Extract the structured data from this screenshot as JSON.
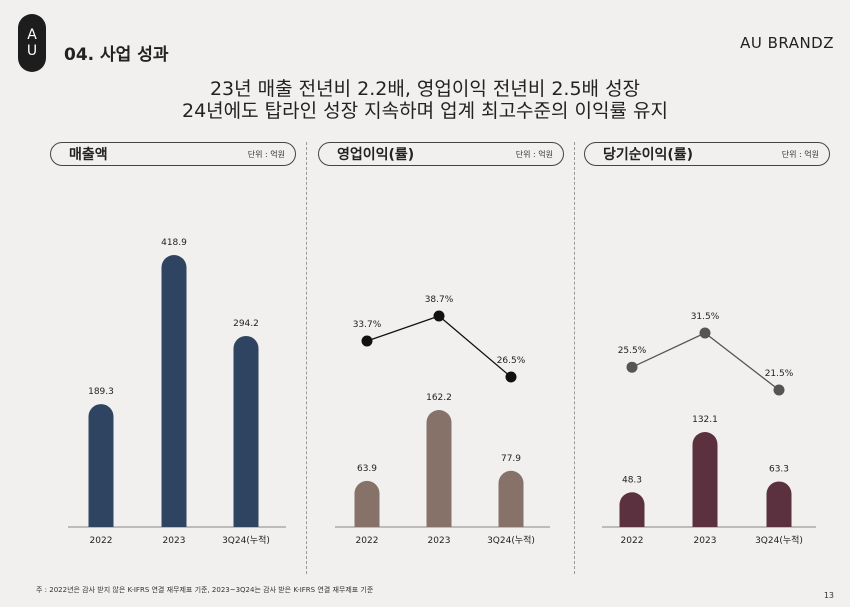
{
  "logo": {
    "top": "A",
    "bottom": "U"
  },
  "section_title": "04. 사업 성과",
  "brand": "AU BRANDZ",
  "headline": {
    "line1": "23년 매출 전년비 2.2배, 영업이익 전년비 2.5배 성장",
    "line2": "24년에도 탑라인 성장 지속하며 업계 최고수준의 이익률 유지"
  },
  "footnote": "주 : 2022년은 감사 받지 않은 K-IFRS 연결 재무제표 기준, 2023~3Q24는 감사 받은 K-IFRS 연결 재무제표 기준",
  "page_number": "13",
  "colors": {
    "revenue": "#2f4461",
    "op_income": "#867269",
    "net_income": "#5b3140",
    "line_op": "#111111",
    "line_net": "#555555"
  },
  "chart_data": [
    {
      "type": "bar",
      "title": "매출액",
      "unit": "단위 : 억원",
      "categories": [
        "2022",
        "2023",
        "3Q24(누적)"
      ],
      "values": [
        189.3,
        418.9,
        294.2
      ],
      "value_labels": [
        "189.3",
        "418.9",
        "294.2"
      ]
    },
    {
      "type": "bar",
      "title": "영업이익(률)",
      "unit": "단위 : 억원",
      "categories": [
        "2022",
        "2023",
        "3Q24(누적)"
      ],
      "values": [
        63.9,
        162.2,
        77.9
      ],
      "value_labels": [
        "63.9",
        "162.2",
        "77.9"
      ],
      "margin": {
        "values": [
          33.7,
          38.7,
          26.5
        ],
        "labels": [
          "33.7%",
          "38.7%",
          "26.5%"
        ]
      }
    },
    {
      "type": "bar",
      "title": "당기순이익(률)",
      "unit": "단위 : 억원",
      "categories": [
        "2022",
        "2023",
        "3Q24(누적)"
      ],
      "values": [
        48.3,
        132.1,
        63.3
      ],
      "value_labels": [
        "48.3",
        "132.1",
        "63.3"
      ],
      "margin": {
        "values": [
          25.5,
          31.5,
          21.5
        ],
        "labels": [
          "25.5%",
          "31.5%",
          "21.5%"
        ]
      }
    }
  ]
}
